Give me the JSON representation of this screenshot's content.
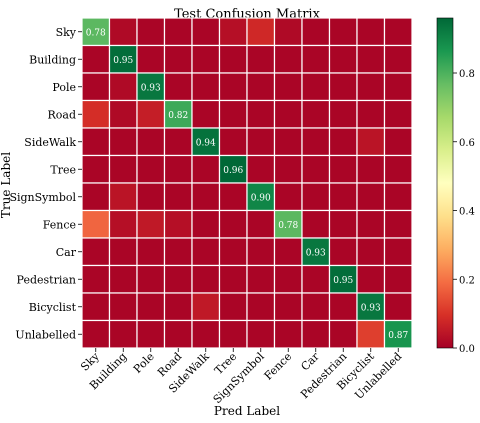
{
  "chart_data": {
    "type": "heatmap",
    "title": "Test Confusion Matrix",
    "xlabel": "Pred Label",
    "ylabel": "True Label",
    "labels": [
      "Sky",
      "Building",
      "Pole",
      "Road",
      "SideWalk",
      "Tree",
      "SignSymbol",
      "Fence",
      "Car",
      "Pedestrian",
      "Bicyclist",
      "Unlabelled"
    ],
    "matrix": [
      [
        0.78,
        0.02,
        0.01,
        0.01,
        0.01,
        0.03,
        0.08,
        0.02,
        0.01,
        0.01,
        0.01,
        0.01
      ],
      [
        0.01,
        0.95,
        0.01,
        0.01,
        0.01,
        0.01,
        0.01,
        0.01,
        0.01,
        0.01,
        0.01,
        0.01
      ],
      [
        0.01,
        0.02,
        0.93,
        0.01,
        0.01,
        0.01,
        0.01,
        0.01,
        0.01,
        0.01,
        0.01,
        0.01
      ],
      [
        0.09,
        0.02,
        0.06,
        0.82,
        0.01,
        0.01,
        0.01,
        0.01,
        0.01,
        0.01,
        0.01,
        0.01
      ],
      [
        0.01,
        0.01,
        0.01,
        0.01,
        0.94,
        0.01,
        0.01,
        0.01,
        0.01,
        0.01,
        0.04,
        0.01
      ],
      [
        0.01,
        0.01,
        0.01,
        0.01,
        0.01,
        0.96,
        0.01,
        0.01,
        0.01,
        0.01,
        0.01,
        0.01
      ],
      [
        0.01,
        0.04,
        0.01,
        0.01,
        0.01,
        0.01,
        0.9,
        0.01,
        0.01,
        0.01,
        0.01,
        0.01
      ],
      [
        0.18,
        0.03,
        0.05,
        0.03,
        0.01,
        0.01,
        0.01,
        0.78,
        0.01,
        0.01,
        0.01,
        0.01
      ],
      [
        0.01,
        0.01,
        0.01,
        0.01,
        0.01,
        0.01,
        0.01,
        0.01,
        0.93,
        0.01,
        0.01,
        0.01
      ],
      [
        0.01,
        0.01,
        0.01,
        0.01,
        0.01,
        0.01,
        0.01,
        0.01,
        0.01,
        0.95,
        0.01,
        0.01
      ],
      [
        0.01,
        0.01,
        0.01,
        0.01,
        0.05,
        0.01,
        0.01,
        0.01,
        0.01,
        0.01,
        0.93,
        0.01
      ],
      [
        0.01,
        0.01,
        0.01,
        0.01,
        0.01,
        0.01,
        0.01,
        0.01,
        0.01,
        0.01,
        0.12,
        0.87
      ]
    ],
    "annotations": [
      "0.78",
      "0.95",
      "0.93",
      "0.82",
      "0.94",
      "0.96",
      "0.90",
      "0.78",
      "0.93",
      "0.95",
      "0.93",
      "0.87"
    ],
    "colorbar_ticks": [
      "0.0",
      "0.2",
      "0.4",
      "0.6",
      "0.8"
    ],
    "colorbar_tick_values": [
      0.0,
      0.2,
      0.4,
      0.6,
      0.8
    ],
    "value_range": [
      0,
      0.96
    ],
    "colormap": "RdYlGn",
    "grid_color": "#ffffff",
    "cell_text_color": "#ffffff"
  }
}
